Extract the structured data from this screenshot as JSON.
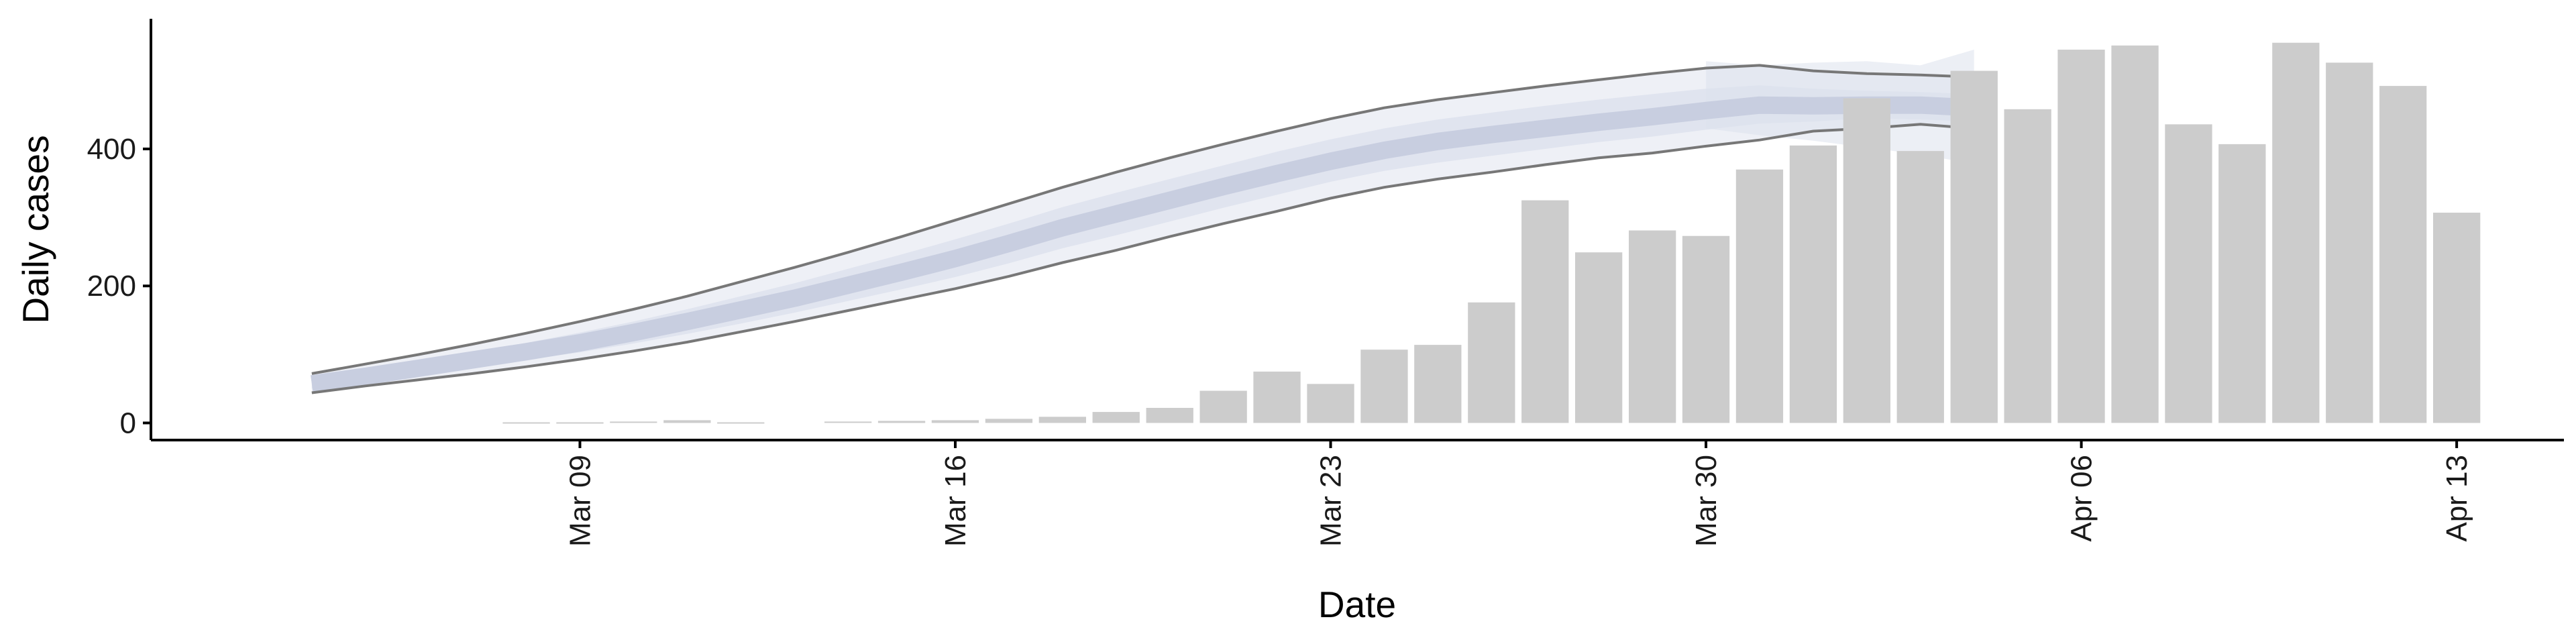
{
  "chart_data": {
    "type": "bar",
    "title": "",
    "xlabel": "Date",
    "ylabel": "Daily cases",
    "ylim": [
      -25,
      590
    ],
    "x_date_range": [
      "2020-03-01",
      "2020-04-15"
    ],
    "yticks": [
      {
        "value": 0,
        "label": "0"
      },
      {
        "value": 200,
        "label": "200"
      },
      {
        "value": 400,
        "label": "400"
      }
    ],
    "xticks": [
      {
        "date": "2020-03-09",
        "label": "Mar 09"
      },
      {
        "date": "2020-03-16",
        "label": "Mar 16"
      },
      {
        "date": "2020-03-23",
        "label": "Mar 23"
      },
      {
        "date": "2020-03-30",
        "label": "Mar 30"
      },
      {
        "date": "2020-04-06",
        "label": "Apr 06"
      },
      {
        "date": "2020-04-13",
        "label": "Apr 13"
      }
    ],
    "bars": {
      "color": "#cccccc",
      "values": [
        {
          "date": "2020-03-08",
          "value": 1
        },
        {
          "date": "2020-03-09",
          "value": 1
        },
        {
          "date": "2020-03-10",
          "value": 2
        },
        {
          "date": "2020-03-11",
          "value": 4
        },
        {
          "date": "2020-03-12",
          "value": 1
        },
        {
          "date": "2020-03-14",
          "value": 2
        },
        {
          "date": "2020-03-15",
          "value": 3
        },
        {
          "date": "2020-03-16",
          "value": 4
        },
        {
          "date": "2020-03-17",
          "value": 6
        },
        {
          "date": "2020-03-18",
          "value": 9
        },
        {
          "date": "2020-03-19",
          "value": 16
        },
        {
          "date": "2020-03-20",
          "value": 22
        },
        {
          "date": "2020-03-21",
          "value": 47
        },
        {
          "date": "2020-03-22",
          "value": 75
        },
        {
          "date": "2020-03-23",
          "value": 57
        },
        {
          "date": "2020-03-24",
          "value": 107
        },
        {
          "date": "2020-03-25",
          "value": 114
        },
        {
          "date": "2020-03-26",
          "value": 176
        },
        {
          "date": "2020-03-27",
          "value": 325
        },
        {
          "date": "2020-03-28",
          "value": 249
        },
        {
          "date": "2020-03-29",
          "value": 281
        },
        {
          "date": "2020-03-30",
          "value": 273
        },
        {
          "date": "2020-03-31",
          "value": 370
        },
        {
          "date": "2020-04-01",
          "value": 405
        },
        {
          "date": "2020-04-02",
          "value": 474
        },
        {
          "date": "2020-04-03",
          "value": 397
        },
        {
          "date": "2020-04-04",
          "value": 514
        },
        {
          "date": "2020-04-05",
          "value": 458
        },
        {
          "date": "2020-04-06",
          "value": 545
        },
        {
          "date": "2020-04-07",
          "value": 551
        },
        {
          "date": "2020-04-08",
          "value": 436
        },
        {
          "date": "2020-04-09",
          "value": 407
        },
        {
          "date": "2020-04-10",
          "value": 555
        },
        {
          "date": "2020-04-11",
          "value": 526
        },
        {
          "date": "2020-04-12",
          "value": 492
        },
        {
          "date": "2020-04-13",
          "value": 307
        }
      ]
    },
    "estimate_band": {
      "band_color": "#c8cee0",
      "band_outline_color": "#777777",
      "dates": [
        "2020-03-04",
        "2020-03-05",
        "2020-03-06",
        "2020-03-07",
        "2020-03-08",
        "2020-03-09",
        "2020-03-10",
        "2020-03-11",
        "2020-03-12",
        "2020-03-13",
        "2020-03-14",
        "2020-03-15",
        "2020-03-16",
        "2020-03-17",
        "2020-03-18",
        "2020-03-19",
        "2020-03-20",
        "2020-03-21",
        "2020-03-22",
        "2020-03-23",
        "2020-03-24",
        "2020-03-25",
        "2020-03-26",
        "2020-03-27",
        "2020-03-28",
        "2020-03-29",
        "2020-03-30",
        "2020-03-31",
        "2020-04-01",
        "2020-04-02",
        "2020-04-03",
        "2020-04-04"
      ],
      "lower": [
        44,
        54,
        63,
        72,
        82,
        93,
        105,
        118,
        133,
        148,
        164,
        180,
        196,
        214,
        234,
        252,
        272,
        291,
        309,
        328,
        344,
        356,
        366,
        377,
        387,
        394,
        404,
        413,
        426,
        430,
        436,
        430
      ],
      "inner_lower": [
        50,
        61,
        71,
        81,
        92,
        103,
        116,
        130,
        145,
        161,
        178,
        195,
        213,
        233,
        255,
        274,
        294,
        314,
        333,
        352,
        368,
        380,
        390,
        400,
        410,
        418,
        428,
        437,
        440,
        445,
        443,
        440
      ],
      "center": [
        57,
        68,
        80,
        92,
        104,
        117,
        132,
        148,
        165,
        182,
        201,
        220,
        240,
        262,
        285,
        305,
        325,
        345,
        364,
        382,
        398,
        411,
        421,
        430,
        439,
        447,
        456,
        464,
        463,
        464,
        464,
        460
      ],
      "inner_upper": [
        64,
        77,
        90,
        103,
        117,
        132,
        148,
        166,
        185,
        204,
        225,
        246,
        268,
        291,
        315,
        336,
        356,
        376,
        396,
        414,
        430,
        443,
        453,
        463,
        472,
        480,
        488,
        493,
        488,
        485,
        483,
        480
      ],
      "upper": [
        72,
        86,
        100,
        115,
        131,
        148,
        166,
        185,
        206,
        227,
        249,
        272,
        296,
        320,
        344,
        366,
        387,
        407,
        426,
        444,
        460,
        472,
        482,
        492,
        501,
        510,
        518,
        522,
        514,
        510,
        508,
        505
      ],
      "ribbon_lower": [
        -0.2,
        -0.1,
        -0.2,
        -0.1,
        -0.1,
        0.0,
        -0.1,
        0.0,
        -0.1,
        -0.1,
        -0.1,
        -0.1,
        -0.1,
        -0.2,
        -0.1,
        -0.2,
        -0.1,
        -0.2,
        -0.2,
        -0.1,
        -0.2,
        -0.1,
        -0.1,
        -0.1,
        -0.1,
        -0.1,
        -0.2,
        -0.1,
        -0.1,
        -0.1,
        -0.1,
        -0.1
      ],
      "ribbon_upper": [
        0.1,
        0.2,
        0.1,
        0.2,
        0.2,
        0.3,
        0.2,
        0.3,
        0.2,
        0.2,
        0.2,
        0.2,
        0.2,
        0.1,
        0.2,
        0.1,
        0.2,
        0.1,
        0.1,
        0.2,
        0.1,
        0.2,
        0.2,
        0.2,
        0.2,
        0.2,
        0.1,
        0.2,
        0.2,
        0.2,
        0.2,
        0.2
      ]
    },
    "forecast_band": {
      "band_color": "#dde1ec",
      "dates": [
        "2020-03-30",
        "2020-03-31",
        "2020-04-01",
        "2020-04-02",
        "2020-04-03",
        "2020-04-04"
      ],
      "lower": [
        430,
        420,
        412,
        402,
        392,
        378
      ],
      "center": [
        490,
        487,
        482,
        478,
        476,
        474
      ],
      "upper": [
        528,
        522,
        526,
        528,
        522,
        545
      ]
    },
    "grid": false,
    "legend": "none"
  }
}
